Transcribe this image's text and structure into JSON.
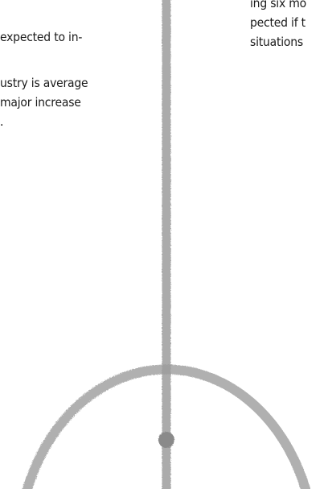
{
  "left_column": {
    "lines": [
      "expected to in-",
      "ustry is average",
      "major increase",
      "."
    ]
  },
  "right_column": {
    "lines": [
      "ing six mo",
      "pected if t",
      "situations"
    ]
  },
  "illustration": {
    "stroke_color": "#9c9c9c",
    "dot_color": "#8a8a8a"
  }
}
